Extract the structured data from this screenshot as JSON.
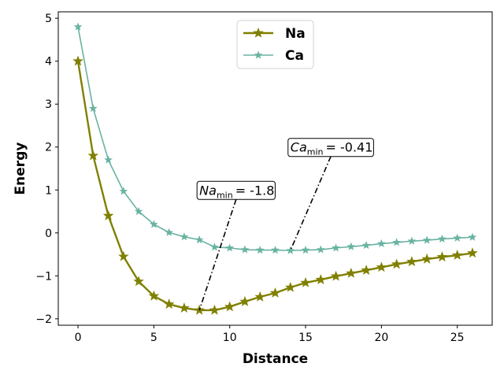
{
  "chart_data": {
    "type": "line",
    "xlabel": "Distance",
    "ylabel": "Energy",
    "xlim": [
      -1.3,
      27.3
    ],
    "ylim": [
      -2.15,
      5.15
    ],
    "xticks": [
      0,
      5,
      10,
      15,
      20,
      25
    ],
    "yticks": [
      -2,
      -1,
      0,
      1,
      2,
      3,
      4,
      5
    ],
    "ytick_labels": [
      "−2",
      "−1",
      "0",
      "1",
      "2",
      "3",
      "4",
      "5"
    ],
    "grid": false,
    "legend_position": "upper center",
    "x": [
      0,
      1,
      2,
      3,
      4,
      5,
      6,
      7,
      8,
      9,
      10,
      11,
      12,
      13,
      14,
      15,
      16,
      17,
      18,
      19,
      20,
      21,
      22,
      23,
      24,
      25,
      26
    ],
    "series": [
      {
        "name": "Na",
        "color": "#808000",
        "marker": "star",
        "values": [
          4.0,
          1.8,
          0.4,
          -0.55,
          -1.13,
          -1.47,
          -1.66,
          -1.75,
          -1.8,
          -1.8,
          -1.72,
          -1.6,
          -1.49,
          -1.4,
          -1.27,
          -1.16,
          -1.09,
          -1.01,
          -0.94,
          -0.87,
          -0.8,
          -0.73,
          -0.67,
          -0.61,
          -0.56,
          -0.52,
          -0.47
        ]
      },
      {
        "name": "Ca",
        "color": "#69b3a2",
        "marker": "star",
        "values": [
          4.8,
          2.9,
          1.7,
          0.97,
          0.5,
          0.2,
          0.01,
          -0.09,
          -0.16,
          -0.33,
          -0.35,
          -0.39,
          -0.4,
          -0.4,
          -0.41,
          -0.4,
          -0.39,
          -0.35,
          -0.32,
          -0.29,
          -0.25,
          -0.22,
          -0.19,
          -0.17,
          -0.14,
          -0.12,
          -0.1
        ]
      }
    ],
    "annotations": [
      {
        "var": "Na",
        "sub": "min",
        "text": "= -1.8",
        "xy": [
          8,
          -1.8
        ],
        "xytext": [
          8.0,
          1.0
        ]
      },
      {
        "var": "Ca",
        "sub": "min",
        "text": "= -0.41",
        "xy": [
          14,
          -0.41
        ],
        "xytext": [
          14.0,
          2.0
        ]
      }
    ]
  }
}
